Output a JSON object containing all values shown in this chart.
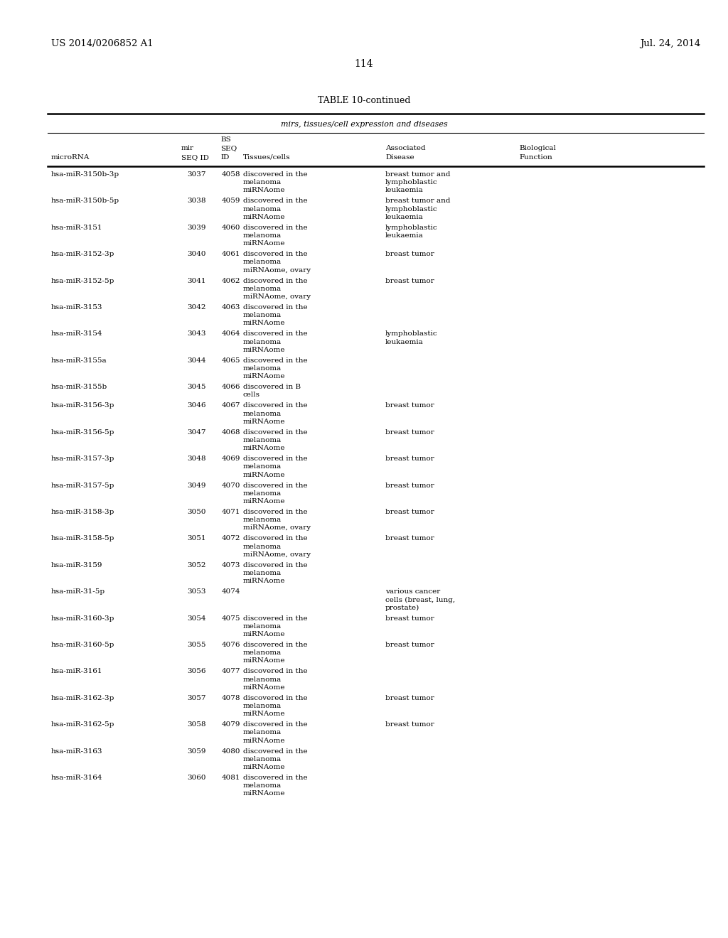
{
  "page_number": "114",
  "patent_number": "US 2014/0206852 A1",
  "patent_date": "Jul. 24, 2014",
  "table_title": "TABLE 10-continued",
  "table_subtitle": "mirs, tissues/cell expression and diseases",
  "rows": [
    [
      "hsa-miR-3150b-3p",
      "3037",
      "4058",
      "discovered in the\nmelanoma\nmiRNAome",
      "breast tumor and\nlymphoblastic\nleukaemia",
      ""
    ],
    [
      "hsa-miR-3150b-5p",
      "3038",
      "4059",
      "discovered in the\nmelanoma\nmiRNAome",
      "breast tumor and\nlymphoblastic\nleukaemia",
      ""
    ],
    [
      "hsa-miR-3151",
      "3039",
      "4060",
      "discovered in the\nmelanoma\nmiRNAome",
      "lymphoblastic\nleukaemia",
      ""
    ],
    [
      "hsa-miR-3152-3p",
      "3040",
      "4061",
      "discovered in the\nmelanoma\nmiRNAome, ovary",
      "breast tumor",
      ""
    ],
    [
      "hsa-miR-3152-5p",
      "3041",
      "4062",
      "discovered in the\nmelanoma\nmiRNAome, ovary",
      "breast tumor",
      ""
    ],
    [
      "hsa-miR-3153",
      "3042",
      "4063",
      "discovered in the\nmelanoma\nmiRNAome",
      "",
      ""
    ],
    [
      "hsa-miR-3154",
      "3043",
      "4064",
      "discovered in the\nmelanoma\nmiRNAome",
      "lymphoblastic\nleukaemia",
      ""
    ],
    [
      "hsa-miR-3155a",
      "3044",
      "4065",
      "discovered in the\nmelanoma\nmiRNAome",
      "",
      ""
    ],
    [
      "hsa-miR-3155b",
      "3045",
      "4066",
      "discovered in B\ncells",
      "",
      ""
    ],
    [
      "hsa-miR-3156-3p",
      "3046",
      "4067",
      "discovered in the\nmelanoma\nmiRNAome",
      "breast tumor",
      ""
    ],
    [
      "hsa-miR-3156-5p",
      "3047",
      "4068",
      "discovered in the\nmelanoma\nmiRNAome",
      "breast tumor",
      ""
    ],
    [
      "hsa-miR-3157-3p",
      "3048",
      "4069",
      "discovered in the\nmelanoma\nmiRNAome",
      "breast tumor",
      ""
    ],
    [
      "hsa-miR-3157-5p",
      "3049",
      "4070",
      "discovered in the\nmelanoma\nmiRNAome",
      "breast tumor",
      ""
    ],
    [
      "hsa-miR-3158-3p",
      "3050",
      "4071",
      "discovered in the\nmelanoma\nmiRNAome, ovary",
      "breast tumor",
      ""
    ],
    [
      "hsa-miR-3158-5p",
      "3051",
      "4072",
      "discovered in the\nmelanoma\nmiRNAome, ovary",
      "breast tumor",
      ""
    ],
    [
      "hsa-miR-3159",
      "3052",
      "4073",
      "discovered in the\nmelanoma\nmiRNAome",
      "",
      ""
    ],
    [
      "hsa-miR-31-5p",
      "3053",
      "4074",
      "",
      "various cancer\ncells (breast, lung,\nprostate)",
      ""
    ],
    [
      "hsa-miR-3160-3p",
      "3054",
      "4075",
      "discovered in the\nmelanoma\nmiRNAome",
      "breast tumor",
      ""
    ],
    [
      "hsa-miR-3160-5p",
      "3055",
      "4076",
      "discovered in the\nmelanoma\nmiRNAome",
      "breast tumor",
      ""
    ],
    [
      "hsa-miR-3161",
      "3056",
      "4077",
      "discovered in the\nmelanoma\nmiRNAome",
      "",
      ""
    ],
    [
      "hsa-miR-3162-3p",
      "3057",
      "4078",
      "discovered in the\nmelanoma\nmiRNAome",
      "breast tumor",
      ""
    ],
    [
      "hsa-miR-3162-5p",
      "3058",
      "4079",
      "discovered in the\nmelanoma\nmiRNAome",
      "breast tumor",
      ""
    ],
    [
      "hsa-miR-3163",
      "3059",
      "4080",
      "discovered in the\nmelanoma\nmiRNAome",
      "",
      ""
    ],
    [
      "hsa-miR-3164",
      "3060",
      "4081",
      "discovered in the\nmelanoma\nmiRNAome",
      "",
      ""
    ]
  ],
  "bg_color": "#ffffff",
  "text_color": "#000000",
  "font_size": 7.5,
  "header_font_size": 7.5
}
